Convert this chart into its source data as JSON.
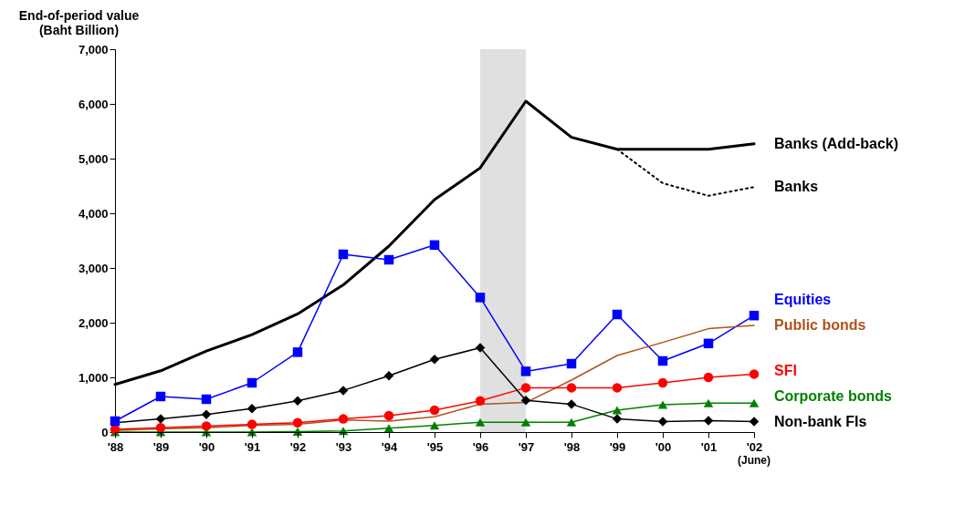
{
  "chart_data": {
    "type": "line",
    "ylabel": "End-of-period value\n(Baht Billion)",
    "categories": [
      "'88",
      "'89",
      "'90",
      "'91",
      "'92",
      "'93",
      "'94",
      "'95",
      "'96",
      "'97",
      "'98",
      "'99",
      "'00",
      "'01",
      "'02"
    ],
    "series": [
      {
        "name": "Banks (Add-back)",
        "color": "#000000",
        "marker": "none",
        "line_style": "solid",
        "values": [
          870,
          1120,
          1480,
          1780,
          2160,
          2690,
          3400,
          4250,
          4830,
          6050,
          5390,
          5170,
          5170,
          5170,
          5270
        ]
      },
      {
        "name": "Banks",
        "color": "#000000",
        "marker": "none",
        "line_style": "dotted",
        "values": [
          null,
          null,
          null,
          null,
          null,
          null,
          null,
          null,
          null,
          null,
          null,
          5170,
          4550,
          4320,
          4480
        ]
      },
      {
        "name": "Equities",
        "color": "#0000ff",
        "marker": "square",
        "line_style": "solid",
        "values": [
          200,
          650,
          600,
          900,
          1460,
          3250,
          3150,
          3420,
          2460,
          1110,
          1250,
          2150,
          1300,
          1620,
          2130
        ]
      },
      {
        "name": "Public bonds",
        "color": "#b0521c",
        "marker": "none",
        "line_style": "solid",
        "values": [
          30,
          60,
          80,
          120,
          140,
          220,
          200,
          280,
          510,
          540,
          950,
          1400,
          1640,
          1890,
          1950
        ]
      },
      {
        "name": "SFI",
        "color": "#ff0000",
        "marker": "circle",
        "line_style": "solid",
        "values": [
          50,
          80,
          110,
          140,
          170,
          240,
          300,
          400,
          570,
          810,
          810,
          810,
          900,
          1000,
          1060
        ]
      },
      {
        "name": "Corporate bonds",
        "color": "#008000",
        "marker": "triangle",
        "line_style": "solid",
        "values": [
          0,
          0,
          0,
          0,
          10,
          20,
          70,
          120,
          180,
          180,
          180,
          400,
          500,
          530,
          530
        ]
      },
      {
        "name": "Non-bank FIs",
        "color": "#000000",
        "marker": "diamond",
        "line_style": "solid",
        "values": [
          170,
          240,
          320,
          430,
          570,
          760,
          1030,
          1330,
          1540,
          580,
          510,
          240,
          190,
          210,
          190
        ]
      }
    ],
    "ylim": [
      0,
      7000
    ],
    "yticks": [
      0,
      {
        "value": 1000,
        "label": "1,000"
      },
      {
        "value": 2000,
        "label": "2,000"
      },
      {
        "value": 3000,
        "label": "3,000"
      },
      {
        "value": 4000,
        "label": "4,000"
      },
      {
        "value": 5000,
        "label": "5,000"
      },
      {
        "value": 6000,
        "label": "6,000"
      },
      {
        "value": 7000,
        "label": "7,000"
      }
    ],
    "bands": [
      {
        "axis": "x",
        "from": "'96",
        "to": "'97",
        "color": "#e0e0e0"
      }
    ],
    "annotations": [
      "(June)"
    ],
    "grid": false,
    "legend": false
  }
}
